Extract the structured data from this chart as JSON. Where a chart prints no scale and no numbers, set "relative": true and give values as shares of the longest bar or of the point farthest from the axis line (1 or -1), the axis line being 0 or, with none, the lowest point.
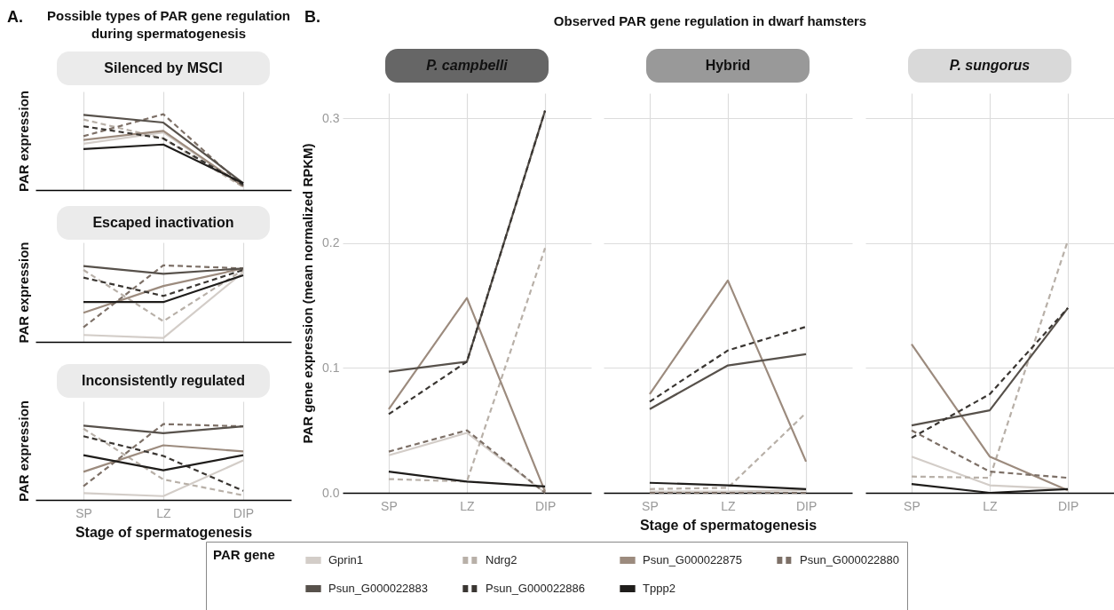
{
  "chart_data": [
    {
      "type": "line",
      "title": "Silenced by MSCI",
      "ylabel": "PAR expression",
      "categories": [
        null,
        null,
        null
      ],
      "relative": true,
      "grid": "x",
      "tick_labels": false,
      "annotations": [
        "A.",
        "Possible types of PAR gene regulation during spermatogenesis"
      ],
      "series": [
        {
          "color": "#d3cdc8",
          "line_style": "solid",
          "values": [
            0.61,
            0.76,
            0.05
          ]
        },
        {
          "color": "#b8b0a8",
          "line_style": "dashed",
          "values": [
            0.93,
            0.68,
            0.04
          ]
        },
        {
          "color": "#9c8b7e",
          "line_style": "solid",
          "values": [
            0.66,
            0.78,
            0.05
          ]
        },
        {
          "color": "#7d7067",
          "line_style": "dashed",
          "values": [
            0.71,
            1,
            0.05
          ]
        },
        {
          "color": "#57514b",
          "line_style": "solid",
          "values": [
            0.99,
            0.89,
            0.09
          ]
        },
        {
          "color": "#3a3632",
          "line_style": "dashed",
          "values": [
            0.84,
            0.68,
            0.07
          ]
        },
        {
          "color": "#1f1d1b",
          "line_style": "solid",
          "values": [
            0.54,
            0.6,
            0.09
          ]
        }
      ]
    },
    {
      "type": "line",
      "title": "Escaped inactivation",
      "ylabel": "PAR expression",
      "categories": [
        null,
        null,
        null
      ],
      "relative": true,
      "grid": "x",
      "tick_labels": false,
      "series": [
        {
          "color": "#d3cdc8",
          "line_style": "solid",
          "values": [
            0.09,
            0.05,
            0.91
          ]
        },
        {
          "color": "#b8b0a8",
          "line_style": "dashed",
          "values": [
            0.94,
            0.27,
            0.94
          ]
        },
        {
          "color": "#9c8b7e",
          "line_style": "solid",
          "values": [
            0.38,
            0.73,
            0.96
          ]
        },
        {
          "color": "#7d7067",
          "line_style": "dashed",
          "values": [
            0.19,
            1,
            0.96
          ]
        },
        {
          "color": "#57514b",
          "line_style": "solid",
          "values": [
            0.99,
            0.89,
            0.96
          ]
        },
        {
          "color": "#3a3632",
          "line_style": "dashed",
          "values": [
            0.84,
            0.6,
            0.94
          ]
        },
        {
          "color": "#1f1d1b",
          "line_style": "solid",
          "values": [
            0.52,
            0.52,
            0.87
          ]
        }
      ]
    },
    {
      "type": "line",
      "title": "Inconsistently regulated",
      "ylabel": "PAR expression",
      "xlabel": "Stage of spermatogenesis",
      "categories": [
        "SP",
        "LZ",
        "DIP"
      ],
      "relative": true,
      "grid": "x",
      "tick_labels": "x",
      "series": [
        {
          "color": "#d3cdc8",
          "line_style": "solid",
          "values": [
            0.09,
            0.05,
            0.52
          ]
        },
        {
          "color": "#b8b0a8",
          "line_style": "dashed",
          "values": [
            0.94,
            0.27,
            0.06
          ]
        },
        {
          "color": "#9c8b7e",
          "line_style": "solid",
          "values": [
            0.37,
            0.72,
            0.64
          ]
        },
        {
          "color": "#7d7067",
          "line_style": "dashed",
          "values": [
            0.18,
            1,
            0.97
          ]
        },
        {
          "color": "#57514b",
          "line_style": "solid",
          "values": [
            0.98,
            0.88,
            0.97
          ]
        },
        {
          "color": "#3a3632",
          "line_style": "dashed",
          "values": [
            0.84,
            0.58,
            0.12
          ]
        },
        {
          "color": "#1f1d1b",
          "line_style": "solid",
          "values": [
            0.59,
            0.39,
            0.59
          ]
        }
      ]
    },
    {
      "type": "line",
      "title": "P. campbelli",
      "ylabel": "PAR gene expression (mean normalized RPKM)",
      "categories": [
        "SP",
        "LZ",
        "DIP"
      ],
      "ylim": [
        0,
        0.32
      ],
      "yticks": [
        {
          "value": 0,
          "label": "0.0"
        },
        0.1,
        0.2,
        0.3
      ],
      "grid": true,
      "annotations": [
        "B.",
        "Observed PAR gene regulation in dwarf hamsters"
      ],
      "series": [
        {
          "color": "#d3cdc8",
          "line_style": "solid",
          "values": [
            0.03,
            0.048,
            0
          ]
        },
        {
          "color": "#b8b0a8",
          "line_style": "dashed",
          "values": [
            0.011,
            0.009,
            0.196
          ]
        },
        {
          "color": "#9c8b7e",
          "line_style": "solid",
          "values": [
            0.067,
            0.156,
            0.001
          ]
        },
        {
          "color": "#7d7067",
          "line_style": "dashed",
          "values": [
            0.033,
            0.05,
            0
          ]
        },
        {
          "color": "#57514b",
          "line_style": "solid",
          "values": [
            0.097,
            0.105,
            0.306
          ]
        },
        {
          "color": "#3a3632",
          "line_style": "dashed",
          "values": [
            0.063,
            0.105,
            0.306
          ]
        },
        {
          "color": "#1f1d1b",
          "line_style": "solid",
          "values": [
            0.017,
            0.009,
            0.005
          ]
        }
      ]
    },
    {
      "type": "line",
      "title": "Hybrid",
      "xlabel": "Stage of spermatogenesis",
      "categories": [
        "SP",
        "LZ",
        "DIP"
      ],
      "ylim": [
        0,
        0.32
      ],
      "yticks": [
        0,
        0.1,
        0.2,
        0.3
      ],
      "grid": true,
      "tick_labels": "x",
      "legend": "bottom",
      "legend_title": "PAR gene",
      "series": [
        {
          "name": "Gprin1",
          "color": "#d3cdc8",
          "line_style": "solid",
          "values": [
            0.001,
            0.001,
            0.002
          ]
        },
        {
          "name": "Ndrg2",
          "color": "#b8b0a8",
          "line_style": "dashed",
          "values": [
            0.003,
            0.004,
            0.064
          ]
        },
        {
          "name": "Psun_G000022875",
          "color": "#9c8b7e",
          "line_style": "solid",
          "values": [
            0.079,
            0.17,
            0.025
          ]
        },
        {
          "name": "Psun_G000022880",
          "color": "#7d7067",
          "line_style": "dashed",
          "values": [
            0,
            0,
            0
          ]
        },
        {
          "name": "Psun_G000022883",
          "color": "#57514b",
          "line_style": "solid",
          "values": [
            0.067,
            0.102,
            0.111
          ]
        },
        {
          "name": "Psun_G000022886",
          "color": "#3a3632",
          "line_style": "dashed",
          "values": [
            0.073,
            0.114,
            0.133
          ]
        },
        {
          "name": "Tppp2",
          "color": "#1f1d1b",
          "line_style": "solid",
          "values": [
            0.008,
            0.006,
            0.003
          ]
        }
      ]
    },
    {
      "type": "line",
      "title": "P. sungorus",
      "categories": [
        "SP",
        "LZ",
        "DIP"
      ],
      "ylim": [
        0,
        0.32
      ],
      "yticks": [
        0,
        0.1,
        0.2,
        0.3
      ],
      "grid": true,
      "tick_labels": "x",
      "series": [
        {
          "color": "#d3cdc8",
          "line_style": "solid",
          "values": [
            0.029,
            0.006,
            0.003
          ]
        },
        {
          "color": "#b8b0a8",
          "line_style": "dashed",
          "values": [
            0.013,
            0.012,
            0.202
          ]
        },
        {
          "color": "#9c8b7e",
          "line_style": "solid",
          "values": [
            0.119,
            0.029,
            0.002
          ]
        },
        {
          "color": "#7d7067",
          "line_style": "dashed",
          "values": [
            0.05,
            0.017,
            0.012
          ]
        },
        {
          "color": "#57514b",
          "line_style": "solid",
          "values": [
            0.054,
            0.066,
            0.148
          ]
        },
        {
          "color": "#3a3632",
          "line_style": "dashed",
          "values": [
            0.044,
            0.079,
            0.148
          ]
        },
        {
          "color": "#1f1d1b",
          "line_style": "solid",
          "values": [
            0.007,
            0,
            0.003
          ]
        }
      ]
    }
  ]
}
